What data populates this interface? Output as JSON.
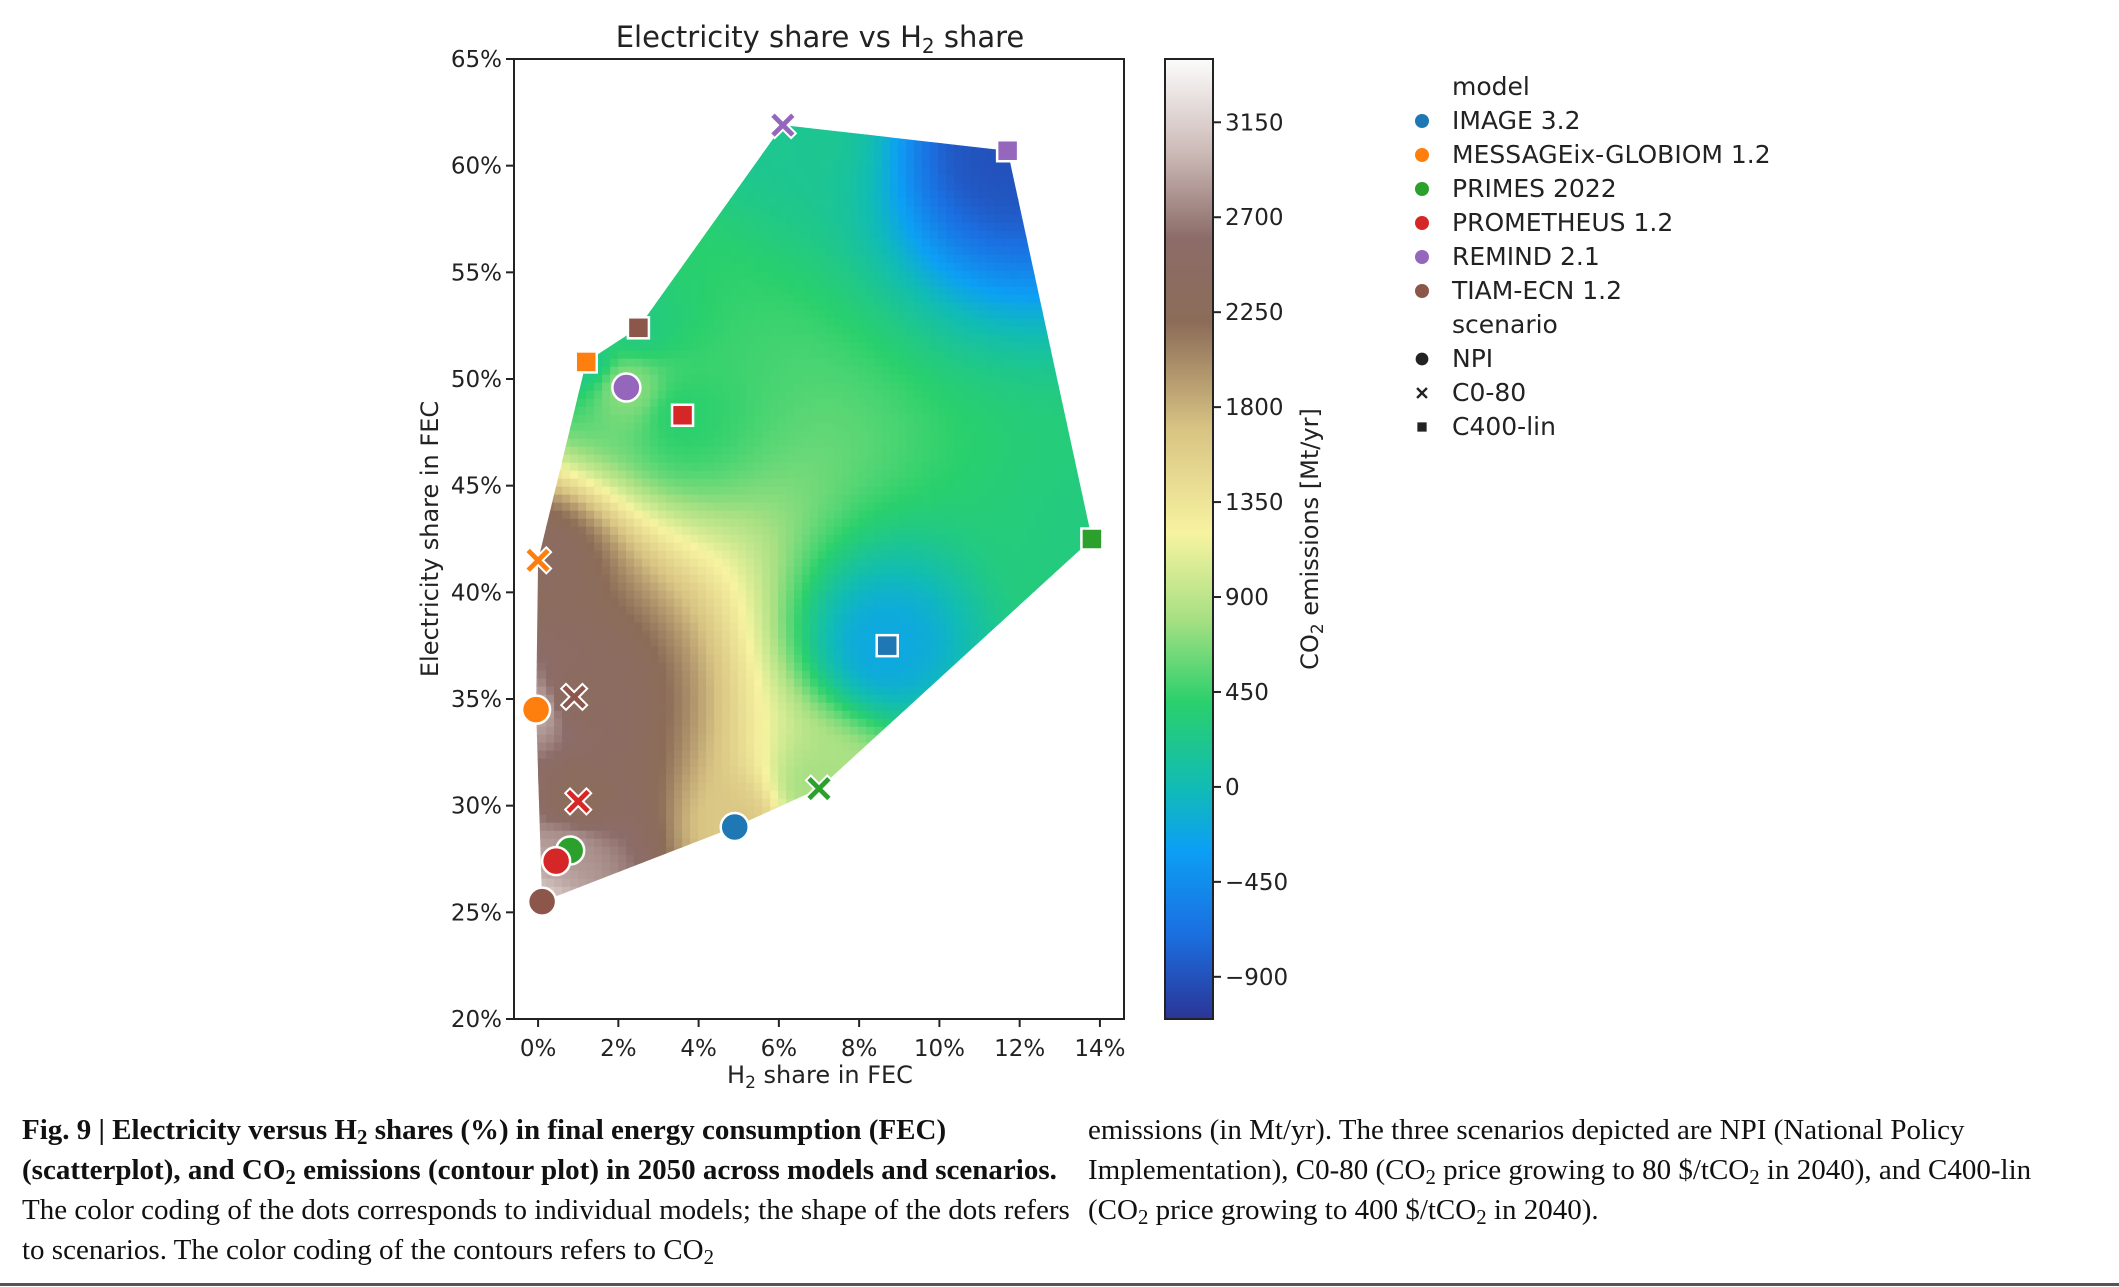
{
  "chart_data": {
    "type": "scatter",
    "title_parts": [
      "Electricity share vs H",
      "2",
      " share"
    ],
    "xlabel_parts": [
      "H",
      "2",
      " share in FEC"
    ],
    "ylabel": "Electricity share in FEC",
    "xlim": [
      -0.6,
      14.6
    ],
    "ylim": [
      20,
      65
    ],
    "xticks": [
      0,
      2,
      4,
      6,
      8,
      10,
      12,
      14
    ],
    "xtick_labels": [
      "0%",
      "2%",
      "4%",
      "6%",
      "8%",
      "10%",
      "12%",
      "14%"
    ],
    "yticks": [
      20,
      25,
      30,
      35,
      40,
      45,
      50,
      55,
      60,
      65
    ],
    "ytick_labels": [
      "20%",
      "25%",
      "30%",
      "35%",
      "40%",
      "45%",
      "50%",
      "55%",
      "60%",
      "65%"
    ],
    "colorbar": {
      "label_parts": [
        "CO",
        "2",
        " emissions [Mt/yr]"
      ],
      "range": [
        -1100,
        3450
      ],
      "ticks": [
        -900,
        -450,
        0,
        450,
        900,
        1350,
        1800,
        2250,
        2700,
        3150
      ],
      "tick_labels": [
        "−900",
        "−450",
        "0",
        "450",
        "900",
        "1350",
        "1800",
        "2250",
        "2700",
        "3150"
      ],
      "stops": [
        {
          "v": -1100,
          "c": "#2b3597"
        },
        {
          "v": -700,
          "c": "#1b6fe0"
        },
        {
          "v": -300,
          "c": "#0c9ff5"
        },
        {
          "v": 0,
          "c": "#11bcb4"
        },
        {
          "v": 400,
          "c": "#2ad06c"
        },
        {
          "v": 800,
          "c": "#a8e083"
        },
        {
          "v": 1200,
          "c": "#f7f3a0"
        },
        {
          "v": 1700,
          "c": "#d8c383"
        },
        {
          "v": 2200,
          "c": "#8c6c58"
        },
        {
          "v": 2600,
          "c": "#8c6c68"
        },
        {
          "v": 3000,
          "c": "#cbb9b6"
        },
        {
          "v": 3450,
          "c": "#fcfcfc"
        }
      ]
    },
    "contour_hull": [
      [
        0.1,
        25.5
      ],
      [
        4.9,
        29.0
      ],
      [
        7.0,
        30.8
      ],
      [
        13.8,
        42.5
      ],
      [
        11.7,
        60.7
      ],
      [
        6.1,
        61.9
      ],
      [
        2.5,
        52.4
      ],
      [
        1.2,
        50.8
      ],
      [
        0.0,
        41.5
      ],
      [
        -0.05,
        34.5
      ]
    ],
    "legend": {
      "model_title": "model",
      "models": [
        {
          "name": "IMAGE 3.2",
          "color": "#1f77b4"
        },
        {
          "name": "MESSAGEix-GLOBIOM 1.2",
          "color": "#ff7f0e"
        },
        {
          "name": "PRIMES 2022",
          "color": "#2ca02c"
        },
        {
          "name": "PROMETHEUS 1.2",
          "color": "#d62728"
        },
        {
          "name": "REMIND 2.1",
          "color": "#9467bd"
        },
        {
          "name": "TIAM-ECN 1.2",
          "color": "#8c564b"
        }
      ],
      "scenario_title": "scenario",
      "scenarios": [
        {
          "name": "NPI",
          "marker": "circle"
        },
        {
          "name": "C0-80",
          "marker": "cross"
        },
        {
          "name": "C400-lin",
          "marker": "square"
        }
      ]
    },
    "points": [
      {
        "model": "IMAGE 3.2",
        "scenario": "NPI",
        "x": 4.9,
        "y": 29.0,
        "co2": 1650
      },
      {
        "model": "IMAGE 3.2",
        "scenario": "C400-lin",
        "x": 8.7,
        "y": 37.5,
        "co2": -200
      },
      {
        "model": "MESSAGEix-GLOBIOM 1.2",
        "scenario": "NPI",
        "x": -0.05,
        "y": 34.5,
        "co2": 2900
      },
      {
        "model": "MESSAGEix-GLOBIOM 1.2",
        "scenario": "C0-80",
        "x": 0.0,
        "y": 41.5,
        "co2": 2400
      },
      {
        "model": "MESSAGEix-GLOBIOM 1.2",
        "scenario": "C400-lin",
        "x": 1.2,
        "y": 50.8,
        "co2": 250
      },
      {
        "model": "PRIMES 2022",
        "scenario": "NPI",
        "x": 0.8,
        "y": 27.9,
        "co2": 2800
      },
      {
        "model": "PRIMES 2022",
        "scenario": "C0-80",
        "x": 7.0,
        "y": 30.8,
        "co2": 800
      },
      {
        "model": "PRIMES 2022",
        "scenario": "C400-lin",
        "x": 13.8,
        "y": 42.5,
        "co2": 300
      },
      {
        "model": "PROMETHEUS 1.2",
        "scenario": "NPI",
        "x": 0.45,
        "y": 27.4,
        "co2": 2900
      },
      {
        "model": "PROMETHEUS 1.2",
        "scenario": "C0-80",
        "x": 1.0,
        "y": 30.2,
        "co2": 2300
      },
      {
        "model": "PROMETHEUS 1.2",
        "scenario": "C400-lin",
        "x": 3.6,
        "y": 48.3,
        "co2": 400
      },
      {
        "model": "REMIND 2.1",
        "scenario": "NPI",
        "x": 2.2,
        "y": 49.6,
        "co2": 700
      },
      {
        "model": "REMIND 2.1",
        "scenario": "C0-80",
        "x": 6.1,
        "y": 61.9,
        "co2": 200
      },
      {
        "model": "REMIND 2.1",
        "scenario": "C400-lin",
        "x": 11.7,
        "y": 60.7,
        "co2": -900
      },
      {
        "model": "TIAM-ECN 1.2",
        "scenario": "NPI",
        "x": 0.1,
        "y": 25.5,
        "co2": 3100
      },
      {
        "model": "TIAM-ECN 1.2",
        "scenario": "C0-80",
        "x": 0.9,
        "y": 35.1,
        "co2": 2400
      },
      {
        "model": "TIAM-ECN 1.2",
        "scenario": "C400-lin",
        "x": 2.5,
        "y": 52.4,
        "co2": 300
      }
    ]
  },
  "caption": {
    "fig_label": "Fig. 9 | ",
    "bold_1": "Electricity versus H",
    "bold_sub_1": "2",
    "bold_2": " shares (%) in final energy consumption (FEC) (scatterplot), and CO",
    "bold_sub_2": "2",
    "bold_3": " emissions (contour plot) in 2050 across models and scenarios.",
    "text_1": " The color coding of the dots corresponds to individual models; the shape of the dots refers to scenarios. The color coding of the contours refers to CO",
    "text_sub_1": "2",
    "text_2": "emissions (in Mt/yr). The three scenarios depicted are NPI (National Policy Implementation), C0-80 (CO",
    "text_sub_2": "2",
    "text_3": " price growing to 80 $/tCO",
    "text_sub_3": "2",
    "text_4": " in 2040), and C400-lin (CO",
    "text_sub_4": "2",
    "text_5": " price growing to 400 $/tCO",
    "text_sub_5": "2",
    "text_6": " in 2040)."
  }
}
